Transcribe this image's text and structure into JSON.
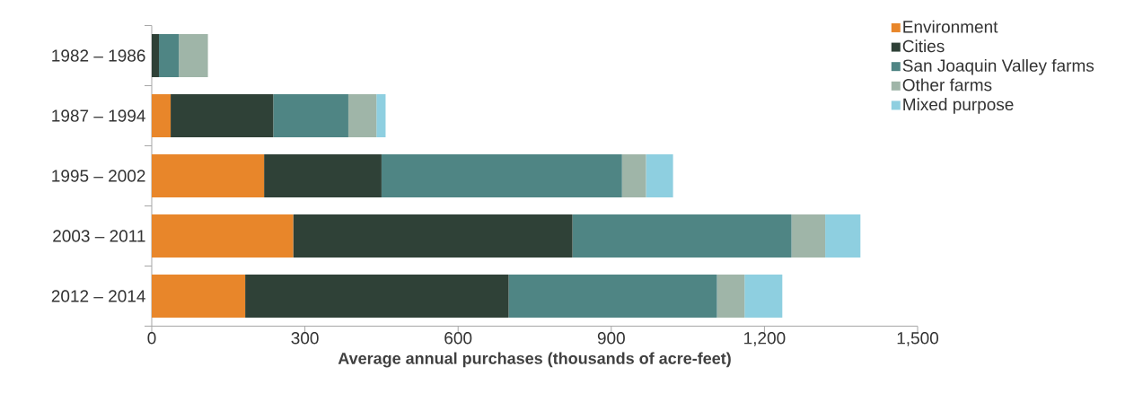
{
  "chart_data": {
    "type": "bar",
    "orientation": "horizontal",
    "stacked": true,
    "xlabel": "Average annual purchases (thousands of acre-feet)",
    "categories": [
      "1982 – 1986",
      "1987 – 1994",
      "1995 – 2002",
      "2003 – 2011",
      "2012 – 2014"
    ],
    "series": [
      {
        "name": "Environment",
        "color": "#e8862a",
        "values": [
          0,
          37,
          220,
          277,
          183
        ]
      },
      {
        "name": "Cities",
        "color": "#2f4137",
        "values": [
          14,
          201,
          230,
          547,
          516
        ]
      },
      {
        "name": "San Joaquin Valley farms",
        "color": "#4f8584",
        "values": [
          39,
          147,
          471,
          429,
          408
        ]
      },
      {
        "name": "Other farms",
        "color": "#9fb5a8",
        "values": [
          57,
          55,
          47,
          66,
          54
        ]
      },
      {
        "name": "Mixed purpose",
        "color": "#8ecfe0",
        "values": [
          0,
          18,
          53,
          69,
          74
        ]
      }
    ],
    "xlim": [
      0,
      1500
    ],
    "xticks": [
      0,
      300,
      600,
      900,
      {
        "value": 1200,
        "label": "1,200"
      },
      {
        "value": 1500,
        "label": "1,500"
      }
    ],
    "legend": "top right"
  }
}
